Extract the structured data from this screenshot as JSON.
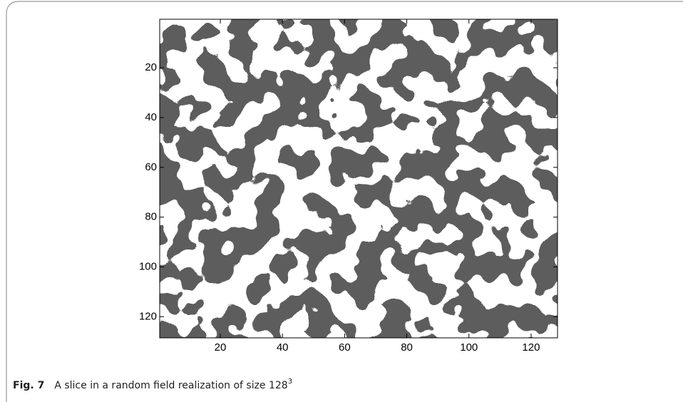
{
  "chart_data": {
    "type": "heatmap",
    "xlim": [
      0.5,
      128.5
    ],
    "ylim": [
      0.5,
      128.5
    ],
    "y_reversed": true,
    "xticks": [
      20,
      40,
      60,
      80,
      100,
      120
    ],
    "yticks": [
      20,
      40,
      60,
      80,
      100,
      120
    ],
    "colors": [
      "#1c1c1c",
      "#ffffff"
    ]
  },
  "caption": {
    "label": "Fig. 7",
    "text": "A slice in a random field realization of size 128",
    "superscript": "3"
  }
}
